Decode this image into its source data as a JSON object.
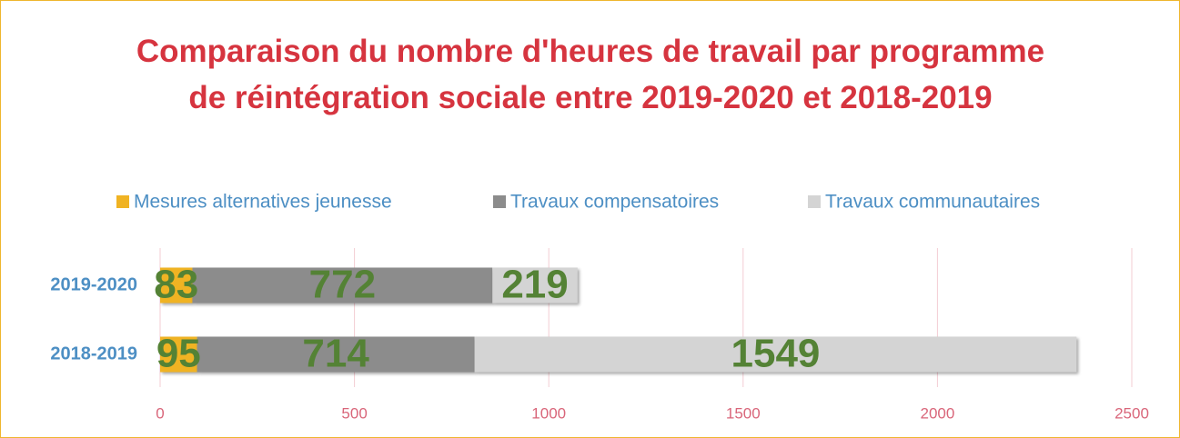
{
  "chart_data": {
    "type": "stacked_barh",
    "title": "Comparaison du nombre d'heures de travail par programme de réintégration sociale entre 2019-2020 et 2018-2019",
    "categories": [
      "2019-2020",
      "2018-2019"
    ],
    "series": [
      {
        "name": "Mesures alternatives jeunesse",
        "color": "#f0b323",
        "values": [
          83,
          95
        ]
      },
      {
        "name": "Travaux compensatoires",
        "color": "#8c8c8c",
        "values": [
          772,
          714
        ]
      },
      {
        "name": "Travaux communautaires",
        "color": "#d4d4d4",
        "values": [
          219,
          1549
        ]
      }
    ],
    "xlim": [
      0,
      2500
    ],
    "xticks": [
      0,
      500,
      1000,
      1500,
      2000,
      2500
    ],
    "grid": true,
    "legend": "top"
  }
}
